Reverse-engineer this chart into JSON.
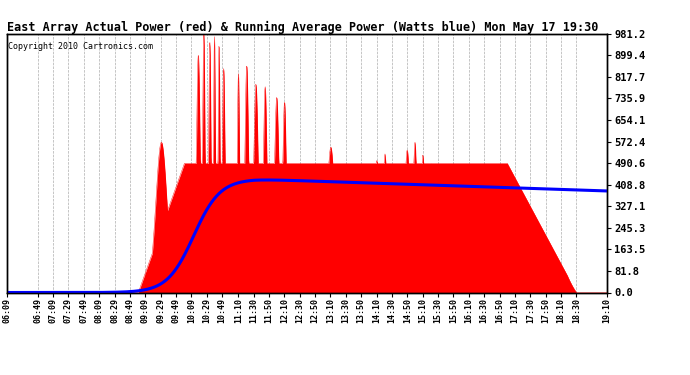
{
  "title": "East Array Actual Power (red) & Running Average Power (Watts blue) Mon May 17 19:30",
  "copyright": "Copyright 2010 Cartronics.com",
  "ylabel_right": [
    "981.2",
    "899.4",
    "817.7",
    "735.9",
    "654.1",
    "572.4",
    "490.6",
    "408.8",
    "327.1",
    "245.3",
    "163.5",
    "81.8",
    "0.0"
  ],
  "yticks": [
    981.2,
    899.4,
    817.7,
    735.9,
    654.1,
    572.4,
    490.6,
    408.8,
    327.1,
    245.3,
    163.5,
    81.8,
    0.0
  ],
  "ymax": 981.2,
  "ymin": 0.0,
  "fill_color": "#ff0000",
  "avg_color": "#0000ff",
  "background_color": "#ffffff",
  "grid_color": "#999999",
  "x_labels": [
    "06:09",
    "06:49",
    "07:09",
    "07:29",
    "07:49",
    "08:09",
    "08:29",
    "08:49",
    "09:09",
    "09:29",
    "09:49",
    "10:09",
    "10:29",
    "10:49",
    "11:10",
    "11:30",
    "11:50",
    "12:10",
    "12:30",
    "12:50",
    "13:10",
    "13:30",
    "13:50",
    "14:10",
    "14:30",
    "14:50",
    "15:10",
    "15:30",
    "15:50",
    "16:10",
    "16:30",
    "16:50",
    "17:10",
    "17:30",
    "17:50",
    "18:10",
    "18:30",
    "19:10"
  ]
}
